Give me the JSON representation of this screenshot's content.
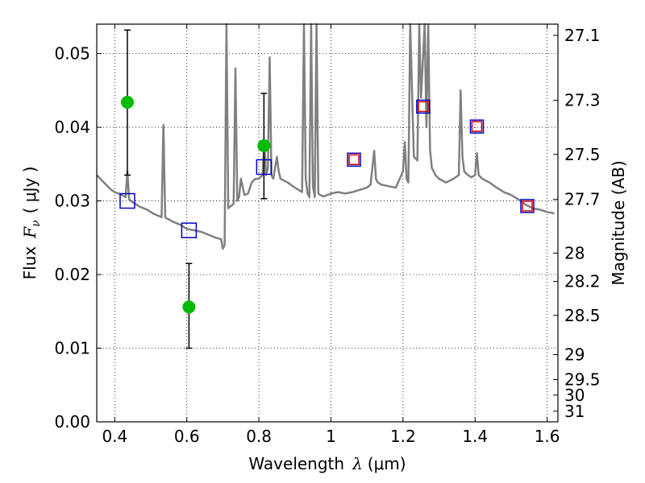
{
  "chart_data": {
    "type": "scatter",
    "xlabel": "Wavelength",
    "xlabel_symbol": "λ",
    "xlabel_unit": "(μm)",
    "ylabel": "Flux",
    "ylabel_symbol": "F",
    "ylabel_subscript": "ν",
    "ylabel_unit": "( μJy )",
    "y2label": "Magnitude (AB)",
    "xlim": [
      0.35,
      1.63
    ],
    "ylim": [
      0.0,
      0.054
    ],
    "grid": true,
    "x_ticks": [
      0.4,
      0.6,
      0.8,
      1.0,
      1.2,
      1.4,
      1.6
    ],
    "x_tick_labels": [
      "0.4",
      "0.6",
      "0.8",
      "1",
      "1.2",
      "1.4",
      "1.6"
    ],
    "y_ticks": [
      0.0,
      0.01,
      0.02,
      0.03,
      0.04,
      0.05
    ],
    "y_tick_labels": [
      "0.00",
      "0.01",
      "0.02",
      "0.03",
      "0.04",
      "0.05"
    ],
    "y2_ticks": [
      27.1,
      27.3,
      27.5,
      27.7,
      28,
      28.2,
      28.5,
      29,
      29.5,
      30,
      31
    ],
    "y2_tick_labels": [
      "27.1",
      "27.3",
      "27.5",
      "27.7",
      "28",
      "28.2",
      "28.5",
      "29",
      "29.5",
      "30",
      "31"
    ],
    "colors": {
      "spectrum": "#808080",
      "observed": "#00bb00",
      "model_blue": "#0000cc",
      "model_red": "#dd0000",
      "errorbar": "#000000",
      "grid": "#000000"
    },
    "series": [
      {
        "kind": "spectrum",
        "x": [
          0.35,
          0.36,
          0.37,
          0.38,
          0.39,
          0.4,
          0.41,
          0.42,
          0.43,
          0.435,
          0.44,
          0.45,
          0.46,
          0.47,
          0.48,
          0.49,
          0.5,
          0.51,
          0.52,
          0.53,
          0.535,
          0.54,
          0.545,
          0.55,
          0.56,
          0.58,
          0.6,
          0.62,
          0.64,
          0.66,
          0.68,
          0.695,
          0.7,
          0.705,
          0.71,
          0.715,
          0.72,
          0.73,
          0.735,
          0.74,
          0.745,
          0.75,
          0.76,
          0.77,
          0.78,
          0.79,
          0.8,
          0.81,
          0.815,
          0.82,
          0.825,
          0.83,
          0.835,
          0.84,
          0.85,
          0.855,
          0.86,
          0.88,
          0.9,
          0.92,
          0.925,
          0.93,
          0.935,
          0.94,
          0.945,
          0.95,
          0.955,
          0.96,
          0.965,
          0.97,
          0.98,
          1.0,
          1.02,
          1.04,
          1.06,
          1.08,
          1.1,
          1.11,
          1.12,
          1.125,
          1.13,
          1.14,
          1.16,
          1.18,
          1.2,
          1.205,
          1.21,
          1.215,
          1.22,
          1.23,
          1.24,
          1.245,
          1.25,
          1.26,
          1.265,
          1.27,
          1.275,
          1.28,
          1.29,
          1.3,
          1.32,
          1.34,
          1.355,
          1.36,
          1.365,
          1.37,
          1.38,
          1.39,
          1.4,
          1.405,
          1.41,
          1.42,
          1.44,
          1.46,
          1.48,
          1.5,
          1.52,
          1.54,
          1.56,
          1.58,
          1.6,
          1.62
        ],
        "y": [
          0.0335,
          0.033,
          0.0325,
          0.032,
          0.0315,
          0.0312,
          0.031,
          0.0308,
          0.0305,
          0.034,
          0.0302,
          0.0298,
          0.0295,
          0.0292,
          0.029,
          0.0288,
          0.0285,
          0.0282,
          0.028,
          0.0278,
          0.0403,
          0.0278,
          0.0276,
          0.0275,
          0.0272,
          0.0268,
          0.0262,
          0.026,
          0.0258,
          0.0254,
          0.025,
          0.0248,
          0.0235,
          0.024,
          0.055,
          0.029,
          0.0292,
          0.0296,
          0.048,
          0.03,
          0.0305,
          0.033,
          0.0308,
          0.031,
          0.0325,
          0.033,
          0.033,
          0.0335,
          0.038,
          0.0335,
          0.0345,
          0.0495,
          0.0335,
          0.033,
          0.036,
          0.034,
          0.033,
          0.0325,
          0.0318,
          0.0312,
          0.055,
          0.033,
          0.031,
          0.0305,
          0.055,
          0.032,
          0.0305,
          0.055,
          0.031,
          0.0308,
          0.0306,
          0.031,
          0.0312,
          0.031,
          0.0312,
          0.0315,
          0.0318,
          0.0322,
          0.0368,
          0.033,
          0.0325,
          0.0322,
          0.032,
          0.0318,
          0.034,
          0.038,
          0.033,
          0.0325,
          0.055,
          0.036,
          0.0355,
          0.055,
          0.044,
          0.055,
          0.04,
          0.055,
          0.037,
          0.0345,
          0.0335,
          0.033,
          0.0325,
          0.033,
          0.0335,
          0.045,
          0.036,
          0.034,
          0.0335,
          0.0332,
          0.0335,
          0.0365,
          0.0335,
          0.033,
          0.0325,
          0.0318,
          0.0312,
          0.0308,
          0.0302,
          0.0295,
          0.029,
          0.0288,
          0.0285,
          0.0283
        ]
      },
      {
        "kind": "observed",
        "x": [
          0.435,
          0.606,
          0.814
        ],
        "y": [
          0.0434,
          0.0156,
          0.0375
        ],
        "yerr": [
          [
            0.0335,
            0.0532
          ],
          [
            0.01,
            0.0215
          ],
          [
            0.0303,
            0.0446
          ]
        ]
      },
      {
        "kind": "model_squares",
        "x": [
          0.435,
          0.606,
          0.814
        ],
        "y": [
          0.03,
          0.026,
          0.0346
        ]
      },
      {
        "kind": "model_squares_dual",
        "x": [
          1.064,
          1.256,
          1.405,
          1.545
        ],
        "y": [
          0.0356,
          0.0428,
          0.0401,
          0.0293
        ]
      }
    ]
  }
}
